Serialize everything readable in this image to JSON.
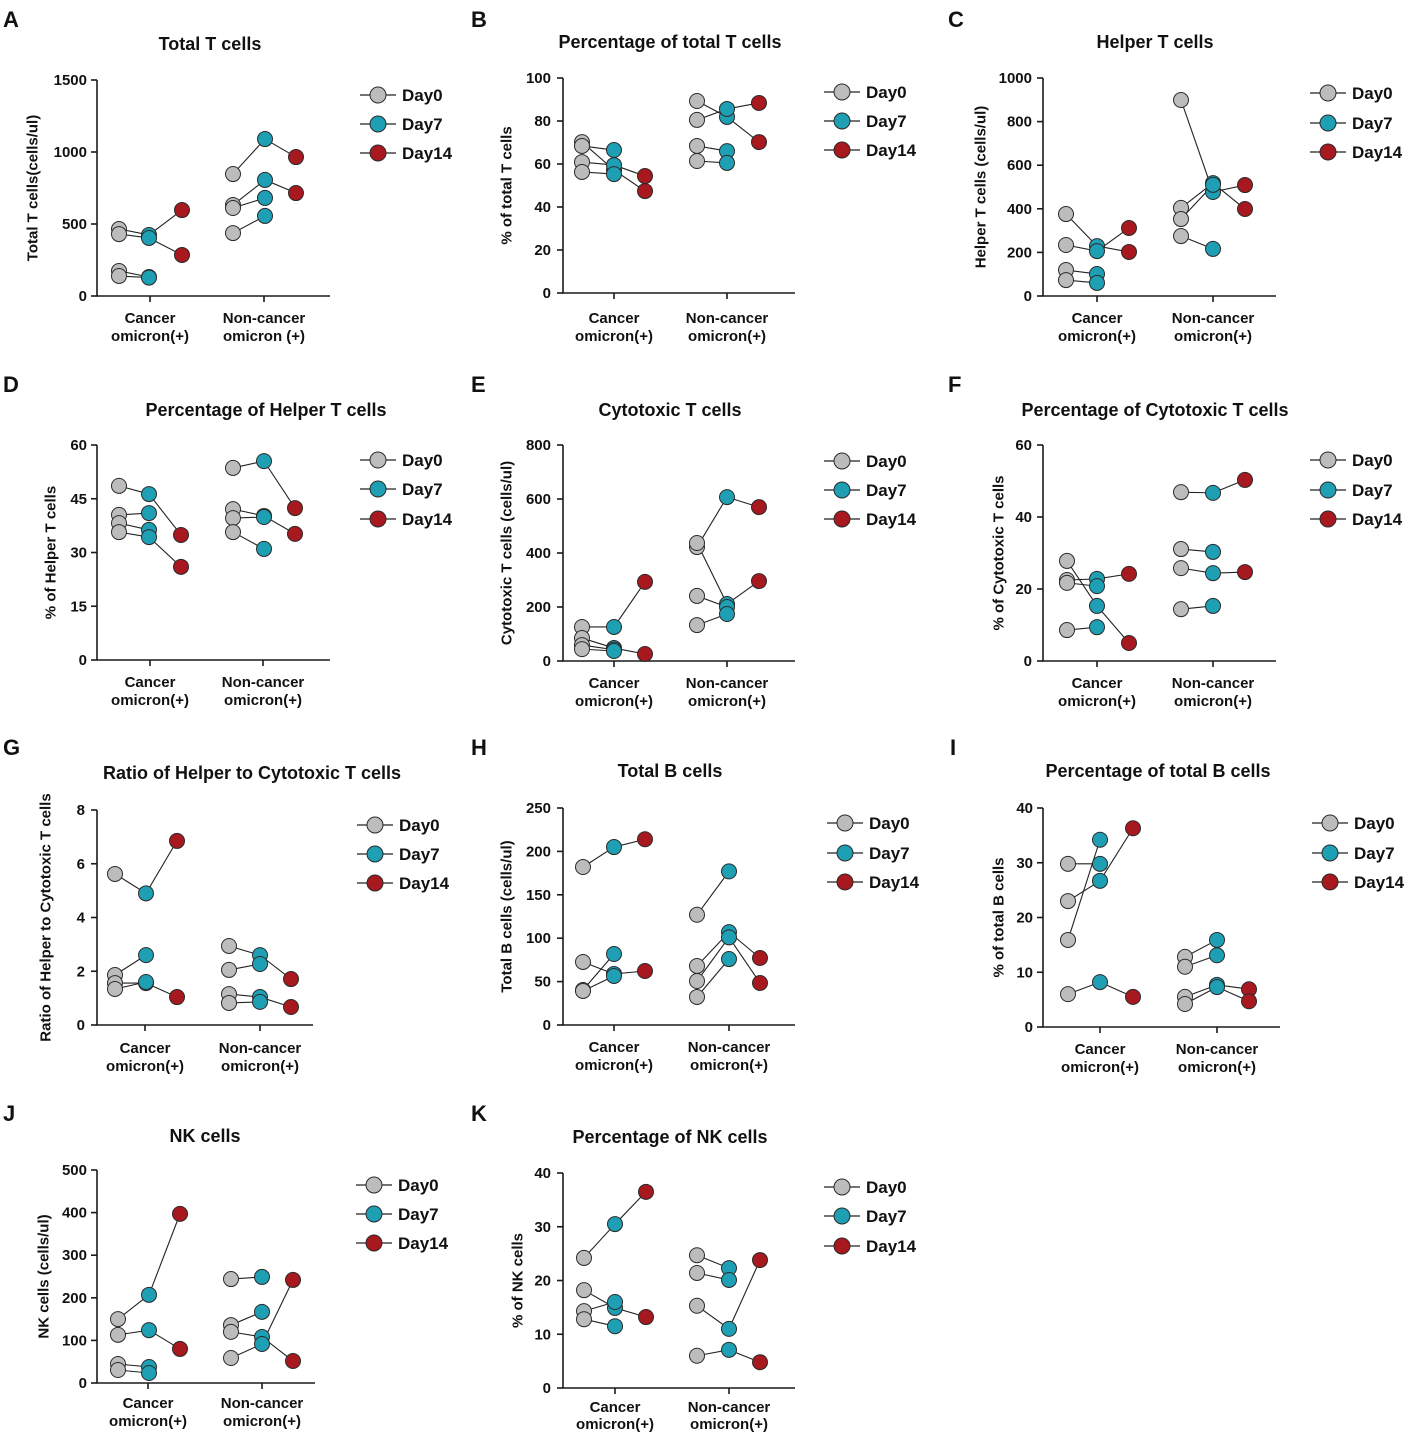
{
  "series": [
    "Day0",
    "Day7",
    "Day14"
  ],
  "colors": {
    "Day0": "#bcbcbc",
    "Day7": "#1e9fb3",
    "Day14": "#a8181f",
    "marker_edge": "#2b2b2b",
    "axis": "#1a1a1a",
    "connector": "#222222"
  },
  "chart_data": [
    {
      "panel": "A",
      "type": "scatter",
      "title": "Total T cells",
      "ylabel": "Total T cells(cells/ul)",
      "ylim": [
        0,
        1500
      ],
      "yticks": [
        0,
        500,
        1000,
        1500
      ],
      "categories": [
        [
          "Cancer",
          "omicron(+)"
        ],
        [
          "Non-cancer",
          "omicron (+)"
        ]
      ],
      "groups": [
        [
          [
            465,
            424,
            597
          ],
          [
            430,
            403,
            285
          ],
          [
            174,
            132
          ],
          [
            139,
            128
          ]
        ],
        [
          [
            847,
            1090,
            965
          ],
          [
            632,
            806,
            715
          ],
          [
            611,
            681
          ],
          [
            437,
            556
          ]
        ]
      ]
    },
    {
      "panel": "B",
      "type": "scatter",
      "title": "Percentage of total T cells",
      "ylabel": "% of total T cells",
      "ylim": [
        0,
        100
      ],
      "yticks": [
        0,
        20,
        40,
        60,
        80,
        100
      ],
      "categories": [
        [
          "Cancer",
          "omicron(+)"
        ],
        [
          "Non-cancer",
          "omicron(+)"
        ]
      ],
      "groups": [
        [
          [
            70.2,
            57.2,
            47.4
          ],
          [
            68.4,
            66.5
          ],
          [
            60.9,
            59.5,
            54.4
          ],
          [
            56.3,
            55.3
          ]
        ],
        [
          [
            89.3,
            81.9,
            70.2
          ],
          [
            80.5,
            85.6,
            88.4
          ],
          [
            68.4,
            66.0
          ],
          [
            61.4,
            60.5
          ]
        ]
      ]
    },
    {
      "panel": "C",
      "type": "scatter",
      "title": "Helper T cells",
      "ylabel": "Helper T cells (cells/ul)",
      "ylim": [
        0,
        1000
      ],
      "yticks": [
        0,
        200,
        400,
        600,
        800,
        1000
      ],
      "categories": [
        [
          "Cancer",
          "omicron(+)"
        ],
        [
          "Non-cancer",
          "omicron(+)"
        ]
      ],
      "groups": [
        [
          [
            376,
            229,
            202
          ],
          [
            234,
            206,
            312
          ],
          [
            119,
            101
          ],
          [
            73,
            60
          ]
        ],
        [
          [
            899,
            477,
            509
          ],
          [
            404,
            518,
            399
          ],
          [
            353,
            510
          ],
          [
            275,
            216
          ]
        ]
      ]
    },
    {
      "panel": "D",
      "type": "scatter",
      "title": "Percentage of Helper T cells",
      "ylabel": "% of Helper T cells",
      "ylim": [
        0,
        60
      ],
      "yticks": [
        0,
        15,
        30,
        45,
        60
      ],
      "categories": [
        [
          "Cancer",
          "omicron(+)"
        ],
        [
          "Non-cancer",
          "omicron(+)"
        ]
      ],
      "groups": [
        [
          [
            48.6,
            46.3,
            34.9
          ],
          [
            40.5,
            41.0
          ],
          [
            38.2,
            36.3
          ],
          [
            35.7,
            34.3,
            26.0
          ]
        ],
        [
          [
            53.6,
            55.5,
            42.4
          ],
          [
            42.1,
            40.2,
            35.2
          ],
          [
            39.6,
            39.9
          ],
          [
            35.7,
            31.0
          ]
        ]
      ]
    },
    {
      "panel": "E",
      "type": "scatter",
      "title": "Cytotoxic T cells",
      "ylabel": "Cytotoxic T cells (cells/ul)",
      "ylim": [
        0,
        800
      ],
      "yticks": [
        0,
        200,
        400,
        600,
        800
      ],
      "categories": [
        [
          "Cancer",
          "omicron(+)"
        ],
        [
          "Non-cancer",
          "omicron(+)"
        ]
      ],
      "groups": [
        [
          [
            126,
            126,
            293
          ],
          [
            85,
            48,
            26
          ],
          [
            59,
            42
          ],
          [
            44,
            37
          ]
        ],
        [
          [
            422,
            607,
            570
          ],
          [
            437,
            211,
            296
          ],
          [
            241,
            200
          ],
          [
            133,
            174
          ]
        ]
      ]
    },
    {
      "panel": "F",
      "type": "scatter",
      "title": "Percentage of Cytotoxic T cells",
      "ylabel": "% of Cytotoxic T cells",
      "ylim": [
        0,
        60
      ],
      "yticks": [
        0,
        20,
        40,
        60
      ],
      "categories": [
        [
          "Cancer",
          "omicron(+)"
        ],
        [
          "Non-cancer",
          "omicron(+)"
        ]
      ],
      "groups": [
        [
          [
            27.8,
            15.3,
            5.0
          ],
          [
            22.5,
            22.8,
            24.2
          ],
          [
            21.7,
            20.8
          ],
          [
            8.6,
            9.4
          ]
        ],
        [
          [
            46.9,
            46.7,
            50.3
          ],
          [
            31.1,
            30.3
          ],
          [
            25.8,
            24.4,
            24.7
          ],
          [
            14.4,
            15.3
          ]
        ]
      ]
    },
    {
      "panel": "G",
      "type": "scatter",
      "title": "Ratio of Helper to Cytotoxic T cells",
      "ylabel": "Ratio of Helper to Cytotoxic T cells",
      "ylim": [
        0,
        8
      ],
      "yticks": [
        0,
        2,
        4,
        6,
        8
      ],
      "categories": [
        [
          "Cancer",
          "omicron(+)"
        ],
        [
          "Non-cancer",
          "omicron(+)"
        ]
      ],
      "groups": [
        [
          [
            5.62,
            4.9,
            6.85
          ],
          [
            1.86,
            2.6
          ],
          [
            1.56,
            1.56,
            1.04
          ],
          [
            1.34,
            1.6
          ]
        ],
        [
          [
            2.94,
            2.6,
            1.71
          ],
          [
            2.05,
            2.27
          ],
          [
            1.15,
            1.04,
            0.67
          ],
          [
            0.82,
            0.86
          ]
        ]
      ]
    },
    {
      "panel": "H",
      "type": "scatter",
      "title": "Total B cells",
      "ylabel": "Total B cells (cells/ul)",
      "ylim": [
        0,
        250
      ],
      "yticks": [
        0,
        50,
        100,
        150,
        200,
        250
      ],
      "categories": [
        [
          "Cancer",
          "omicron(+)"
        ],
        [
          "Non-cancer",
          "omicron(+)"
        ]
      ],
      "groups": [
        [
          [
            182,
            205,
            214
          ],
          [
            72.6,
            58.8,
            62.2
          ],
          [
            40.3,
            81.8
          ],
          [
            39.2,
            56.5
          ]
        ],
        [
          [
            127,
            177
          ],
          [
            68,
            107,
            77.2
          ],
          [
            50.7,
            101,
            48.4
          ],
          [
            32.3,
            76
          ]
        ]
      ]
    },
    {
      "panel": "I",
      "type": "scatter",
      "title": "Percentage of total B cells",
      "ylabel": "% of total B cells",
      "ylim": [
        0,
        40
      ],
      "yticks": [
        0,
        10,
        20,
        30,
        40
      ],
      "categories": [
        [
          "Cancer",
          "omicron(+)"
        ],
        [
          "Non-cancer",
          "omicron(+)"
        ]
      ],
      "groups": [
        [
          [
            29.8,
            29.8
          ],
          [
            23.0,
            26.7,
            36.3
          ],
          [
            15.9,
            34.2
          ],
          [
            6.0,
            8.2,
            5.5
          ]
        ],
        [
          [
            12.8,
            15.9
          ],
          [
            11.0,
            13.1
          ],
          [
            5.5,
            7.7,
            6.9
          ],
          [
            4.2,
            7.3,
            4.7
          ]
        ]
      ]
    },
    {
      "panel": "J",
      "type": "scatter",
      "title": "NK cells",
      "ylabel": "NK cells (cells/ul)",
      "ylim": [
        0,
        500
      ],
      "yticks": [
        0,
        100,
        200,
        300,
        400,
        500
      ],
      "categories": [
        [
          "Cancer",
          "omicron(+)"
        ],
        [
          "Non-cancer",
          "omicron(+)"
        ]
      ],
      "groups": [
        [
          [
            150,
            207,
            397
          ],
          [
            113,
            124,
            80
          ],
          [
            44.6,
            37.6
          ],
          [
            30.5,
            23.5
          ]
        ],
        [
          [
            244,
            249
          ],
          [
            136,
            167
          ],
          [
            120,
            108,
            51.6
          ],
          [
            58.7,
            91.5,
            242
          ]
        ]
      ]
    },
    {
      "panel": "K",
      "type": "scatter",
      "title": "Percentage of NK cells",
      "ylabel": "% of NK cells",
      "ylim": [
        0,
        40
      ],
      "yticks": [
        0,
        10,
        20,
        30,
        40
      ],
      "categories": [
        [
          "Cancer",
          "omicron(+)"
        ],
        [
          "Non-cancer",
          "omicron(+)"
        ]
      ],
      "groups": [
        [
          [
            24.2,
            30.5,
            36.5
          ],
          [
            18.2,
            14.9,
            13.2
          ],
          [
            14.3,
            16.0
          ],
          [
            12.8,
            11.5
          ]
        ],
        [
          [
            24.7,
            22.3
          ],
          [
            21.4,
            20.1
          ],
          [
            15.3,
            11.0,
            23.8
          ],
          [
            6.0,
            7.1,
            4.8
          ]
        ]
      ]
    }
  ]
}
